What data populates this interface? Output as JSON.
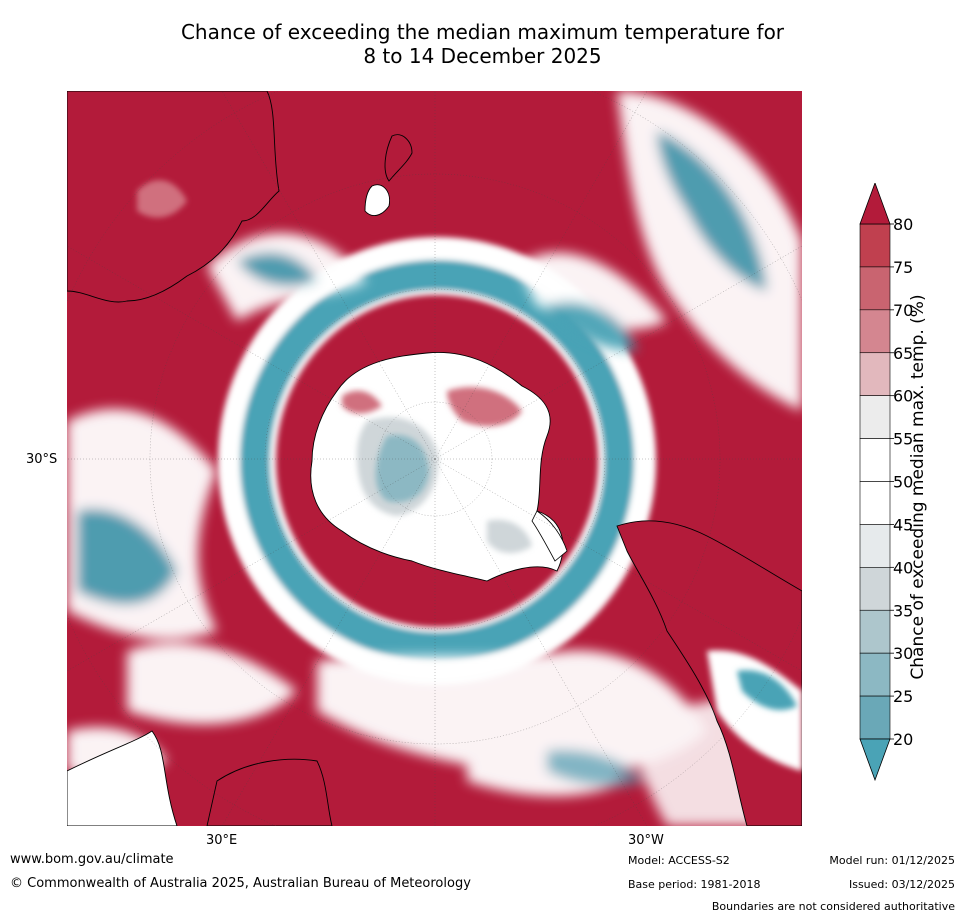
{
  "title": {
    "line1": "Chance of exceeding the median maximum temperature for",
    "line2": "8 to 14 December 2025"
  },
  "map": {
    "latitude_labels": [
      "30°S"
    ],
    "longitude_labels": [
      "30°E",
      "30°W"
    ],
    "colors": {
      "high": "#b31b3a",
      "mid_high": "#d0707e",
      "light_red": "#e3b6bc",
      "neutral": "#ffffff",
      "light_grey": "#d4d9dc",
      "teal": "#4aa3b6",
      "coastline": "#000000"
    }
  },
  "colorbar": {
    "title": "Chance of exceeding median max. temp. (%)",
    "ticks": [
      "80",
      "75",
      "70",
      "65",
      "60",
      "55",
      "50",
      "45",
      "40",
      "35",
      "30",
      "25",
      "20"
    ],
    "band_colors": [
      "#c0404f",
      "#c96470",
      "#d48690",
      "#e2b8bd",
      "#ececec",
      "#ffffff",
      "#ffffff",
      "#e6eaec",
      "#cfd6d9",
      "#adc6cc",
      "#8cb8c3",
      "#6aa8b7"
    ],
    "top_triangle_color": "#b31b3a",
    "bottom_triangle_color": "#4aa3b6"
  },
  "footer": {
    "website": "www.bom.gov.au/climate",
    "copyright": "© Commonwealth of Australia 2025, Australian Bureau of Meteorology",
    "model": "Model: ACCESS-S2",
    "base_period": "Base period: 1981-2018",
    "model_run": "Model run: 01/12/2025",
    "issued": "Issued: 03/12/2025",
    "disclaimer": "Boundaries are not considered authoritative"
  }
}
